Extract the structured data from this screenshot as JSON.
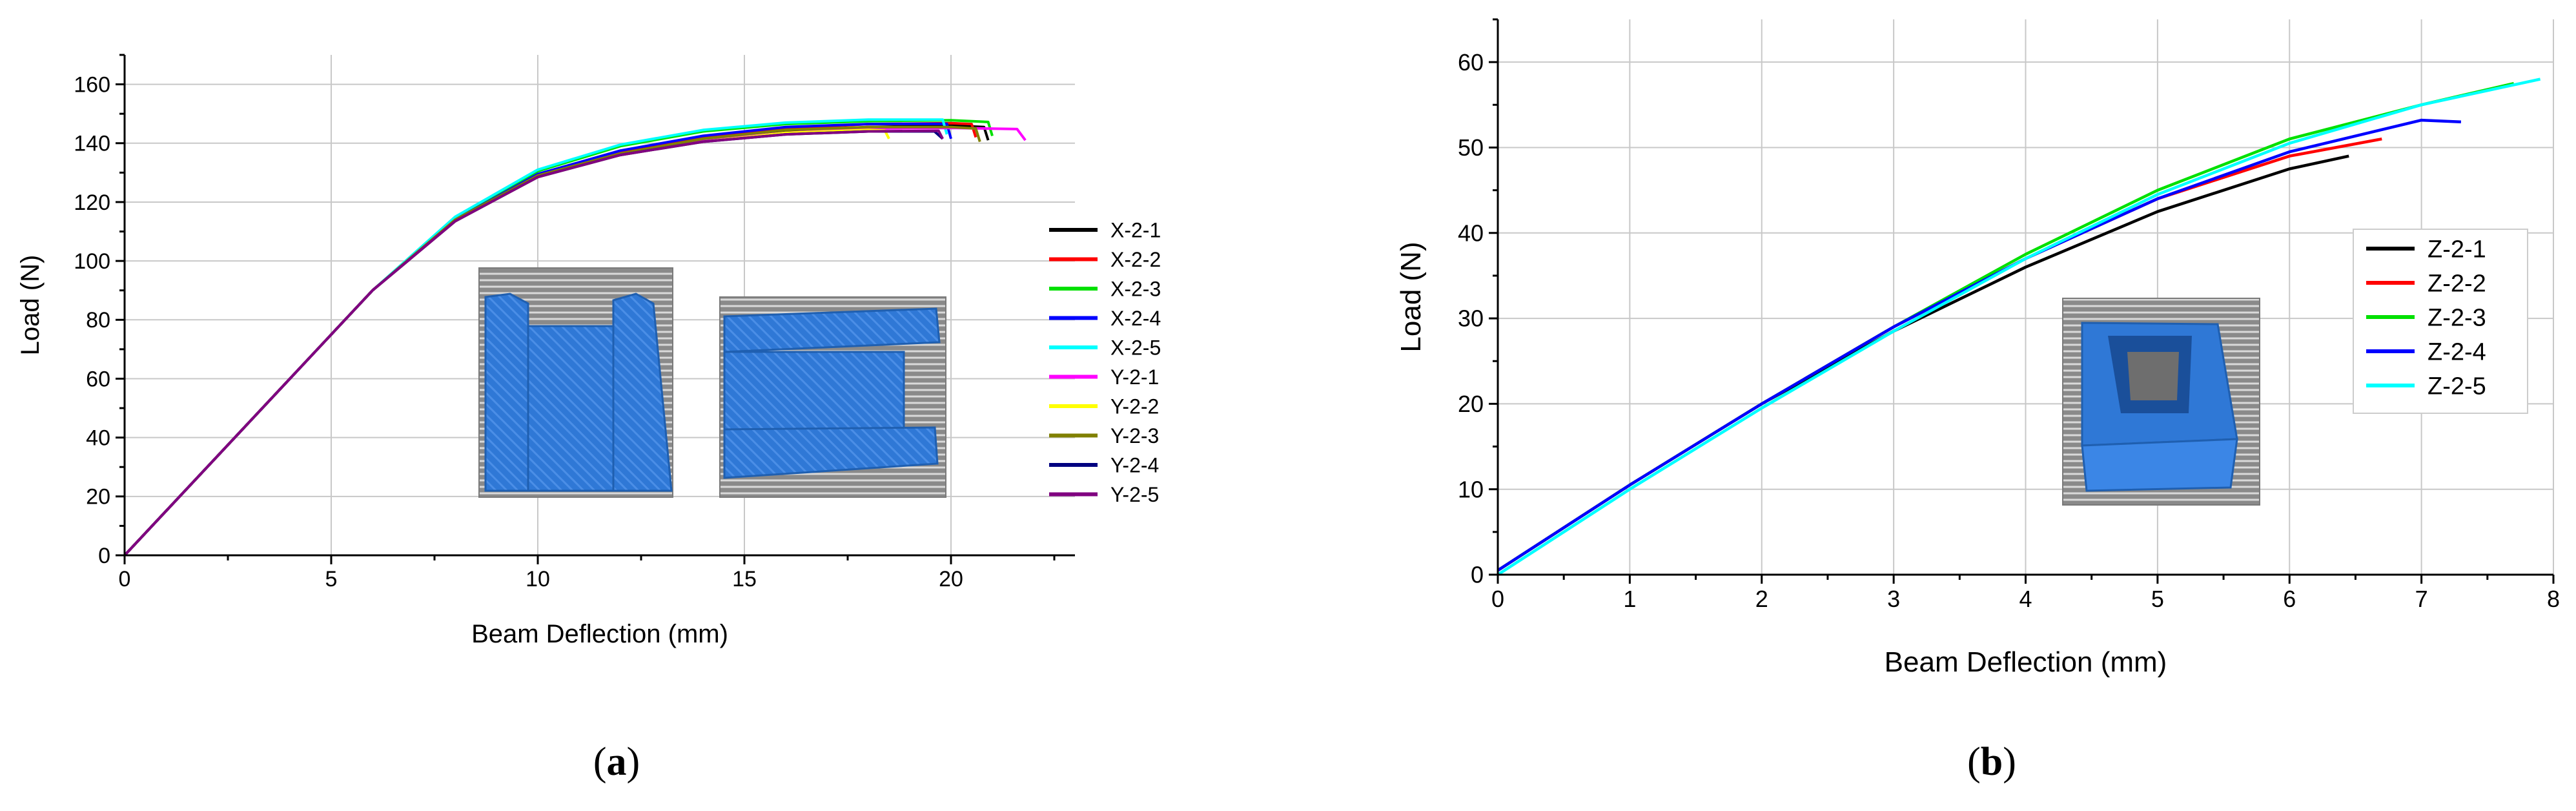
{
  "panels": [
    {
      "label": "(a)",
      "label_open": "(",
      "label_letter": "a",
      "label_close": ")"
    },
    {
      "label": "(b)",
      "label_open": "(",
      "label_letter": "b",
      "label_close": ")"
    }
  ],
  "colors": {
    "axis": "#000000",
    "grid": "#c8c8c8",
    "legend_border": "#cccccc",
    "inset_gray": "#8c8c8c",
    "inset_blue": "#2f78d6"
  },
  "chart_data": [
    {
      "type": "line",
      "xlabel": "Beam Deflection (mm)",
      "ylabel": "Load (N)",
      "xlim": [
        0,
        23
      ],
      "ylim": [
        0,
        170
      ],
      "xticks": [
        0,
        5,
        10,
        15,
        20
      ],
      "yticks": [
        0,
        20,
        40,
        60,
        80,
        100,
        120,
        140,
        160
      ],
      "grid": true,
      "legend_position": "right",
      "inset_images": 2,
      "series": [
        {
          "name": "X-2-1",
          "color": "#000000",
          "points": [
            [
              0,
              0
            ],
            [
              2,
              30
            ],
            [
              4,
              60
            ],
            [
              6,
              90
            ],
            [
              8,
              114
            ],
            [
              10,
              129
            ],
            [
              12,
              136
            ],
            [
              14,
              141
            ],
            [
              16,
              144
            ],
            [
              18,
              145.5
            ],
            [
              20,
              146
            ],
            [
              20.8,
              145.5
            ],
            [
              20.9,
              141
            ]
          ]
        },
        {
          "name": "X-2-2",
          "color": "#ff0000",
          "points": [
            [
              0,
              0
            ],
            [
              2,
              30
            ],
            [
              4,
              60
            ],
            [
              6,
              90
            ],
            [
              8,
              114
            ],
            [
              10,
              129
            ],
            [
              12,
              137
            ],
            [
              14,
              142
            ],
            [
              16,
              145
            ],
            [
              18,
              146.5
            ],
            [
              20,
              146.8
            ],
            [
              20.5,
              146.5
            ],
            [
              20.6,
              142
            ]
          ]
        },
        {
          "name": "X-2-3",
          "color": "#00e000",
          "points": [
            [
              0,
              0
            ],
            [
              2,
              30
            ],
            [
              4,
              60
            ],
            [
              6,
              90
            ],
            [
              8,
              114.5
            ],
            [
              10,
              130.5
            ],
            [
              12,
              139
            ],
            [
              14,
              144
            ],
            [
              16,
              146.5
            ],
            [
              18,
              147.5
            ],
            [
              20,
              147.8
            ],
            [
              20.9,
              147.2
            ],
            [
              21,
              142.5
            ]
          ]
        },
        {
          "name": "X-2-4",
          "color": "#0000ff",
          "points": [
            [
              0,
              0
            ],
            [
              2,
              30
            ],
            [
              4,
              60
            ],
            [
              6,
              90
            ],
            [
              8,
              114
            ],
            [
              10,
              129.5
            ],
            [
              12,
              137.5
            ],
            [
              14,
              142.5
            ],
            [
              16,
              145.5
            ],
            [
              18,
              146.5
            ],
            [
              19.9,
              146.6
            ],
            [
              20,
              141.5
            ]
          ]
        },
        {
          "name": "X-2-5",
          "color": "#00ffff",
          "points": [
            [
              0,
              0
            ],
            [
              2,
              30
            ],
            [
              4,
              60
            ],
            [
              6,
              90
            ],
            [
              8,
              115
            ],
            [
              10,
              131
            ],
            [
              12,
              139.5
            ],
            [
              14,
              144.5
            ],
            [
              16,
              147
            ],
            [
              18,
              148
            ],
            [
              19.8,
              148
            ],
            [
              19.9,
              143
            ]
          ]
        },
        {
          "name": "Y-2-1",
          "color": "#ff00ff",
          "points": [
            [
              0,
              0
            ],
            [
              2,
              30
            ],
            [
              4,
              60
            ],
            [
              6,
              90
            ],
            [
              8,
              113.5
            ],
            [
              10,
              129
            ],
            [
              12,
              136.5
            ],
            [
              14,
              141
            ],
            [
              16,
              143.5
            ],
            [
              18,
              145
            ],
            [
              20,
              145.2
            ],
            [
              21.6,
              144.8
            ],
            [
              21.8,
              141
            ]
          ]
        },
        {
          "name": "Y-2-2",
          "color": "#ffff00",
          "points": [
            [
              0,
              0
            ],
            [
              2,
              30
            ],
            [
              4,
              60
            ],
            [
              6,
              90
            ],
            [
              8,
              113.5
            ],
            [
              10,
              128.5
            ],
            [
              12,
              136
            ],
            [
              14,
              140.5
            ],
            [
              16,
              143.5
            ],
            [
              18,
              144.5
            ],
            [
              18.4,
              144.3
            ],
            [
              18.5,
              141.5
            ]
          ]
        },
        {
          "name": "Y-2-3",
          "color": "#808000",
          "points": [
            [
              0,
              0
            ],
            [
              2,
              30
            ],
            [
              4,
              60
            ],
            [
              6,
              90
            ],
            [
              8,
              114
            ],
            [
              10,
              129
            ],
            [
              12,
              136.5
            ],
            [
              14,
              141.5
            ],
            [
              16,
              144.5
            ],
            [
              18,
              145.5
            ],
            [
              20,
              145.5
            ],
            [
              20.6,
              145
            ],
            [
              20.7,
              140.5
            ]
          ]
        },
        {
          "name": "Y-2-4",
          "color": "#000080",
          "points": [
            [
              0,
              0
            ],
            [
              2,
              30
            ],
            [
              4,
              60
            ],
            [
              6,
              90
            ],
            [
              8,
              113.5
            ],
            [
              10,
              128.5
            ],
            [
              12,
              136
            ],
            [
              14,
              140.5
            ],
            [
              16,
              143
            ],
            [
              18,
              144
            ],
            [
              19.6,
              144
            ],
            [
              19.8,
              141.5
            ]
          ]
        },
        {
          "name": "Y-2-5",
          "color": "#800080",
          "points": [
            [
              0,
              0
            ],
            [
              2,
              30
            ],
            [
              4,
              60
            ],
            [
              6,
              90
            ],
            [
              8,
              113.5
            ],
            [
              10,
              128.5
            ],
            [
              12,
              136
            ],
            [
              14,
              140.5
            ],
            [
              16,
              143
            ],
            [
              18,
              144
            ],
            [
              19.7,
              144.2
            ],
            [
              19.8,
              141.5
            ]
          ]
        }
      ]
    },
    {
      "type": "line",
      "xlabel": "Beam Deflection (mm)",
      "ylabel": "Load (N)",
      "xlim": [
        0,
        8
      ],
      "ylim": [
        0,
        65
      ],
      "xticks": [
        0,
        1,
        2,
        3,
        4,
        5,
        6,
        7,
        8
      ],
      "yticks": [
        0,
        10,
        20,
        30,
        40,
        50,
        60
      ],
      "grid": true,
      "legend_position": "right",
      "inset_images": 1,
      "series": [
        {
          "name": "Z-2-1",
          "color": "#000000",
          "points": [
            [
              0,
              0.5
            ],
            [
              1,
              10.5
            ],
            [
              2,
              20
            ],
            [
              3,
              28.5
            ],
            [
              4,
              36
            ],
            [
              5,
              42.5
            ],
            [
              6,
              47.5
            ],
            [
              6.45,
              49
            ]
          ]
        },
        {
          "name": "Z-2-2",
          "color": "#ff0000",
          "points": [
            [
              0,
              0.5
            ],
            [
              1,
              10.5
            ],
            [
              2,
              20
            ],
            [
              3,
              29
            ],
            [
              4,
              37
            ],
            [
              5,
              44
            ],
            [
              6,
              49
            ],
            [
              6.7,
              51
            ]
          ]
        },
        {
          "name": "Z-2-3",
          "color": "#00e000",
          "points": [
            [
              0,
              0.5
            ],
            [
              1,
              10.5
            ],
            [
              2,
              20
            ],
            [
              3,
              29
            ],
            [
              4,
              37.5
            ],
            [
              5,
              45
            ],
            [
              6,
              51
            ],
            [
              7,
              55
            ],
            [
              7.7,
              57.5
            ]
          ]
        },
        {
          "name": "Z-2-4",
          "color": "#0000ff",
          "points": [
            [
              0,
              0.5
            ],
            [
              1,
              10.5
            ],
            [
              2,
              20
            ],
            [
              3,
              29
            ],
            [
              4,
              37
            ],
            [
              5,
              44
            ],
            [
              6,
              49.5
            ],
            [
              7,
              53.2
            ],
            [
              7.3,
              53
            ]
          ]
        },
        {
          "name": "Z-2-5",
          "color": "#00ffff",
          "points": [
            [
              0,
              0
            ],
            [
              1,
              10
            ],
            [
              2,
              19.5
            ],
            [
              3,
              28.5
            ],
            [
              4,
              37
            ],
            [
              5,
              44.5
            ],
            [
              6,
              50.5
            ],
            [
              7,
              55
            ],
            [
              7.9,
              58
            ]
          ]
        }
      ]
    }
  ]
}
